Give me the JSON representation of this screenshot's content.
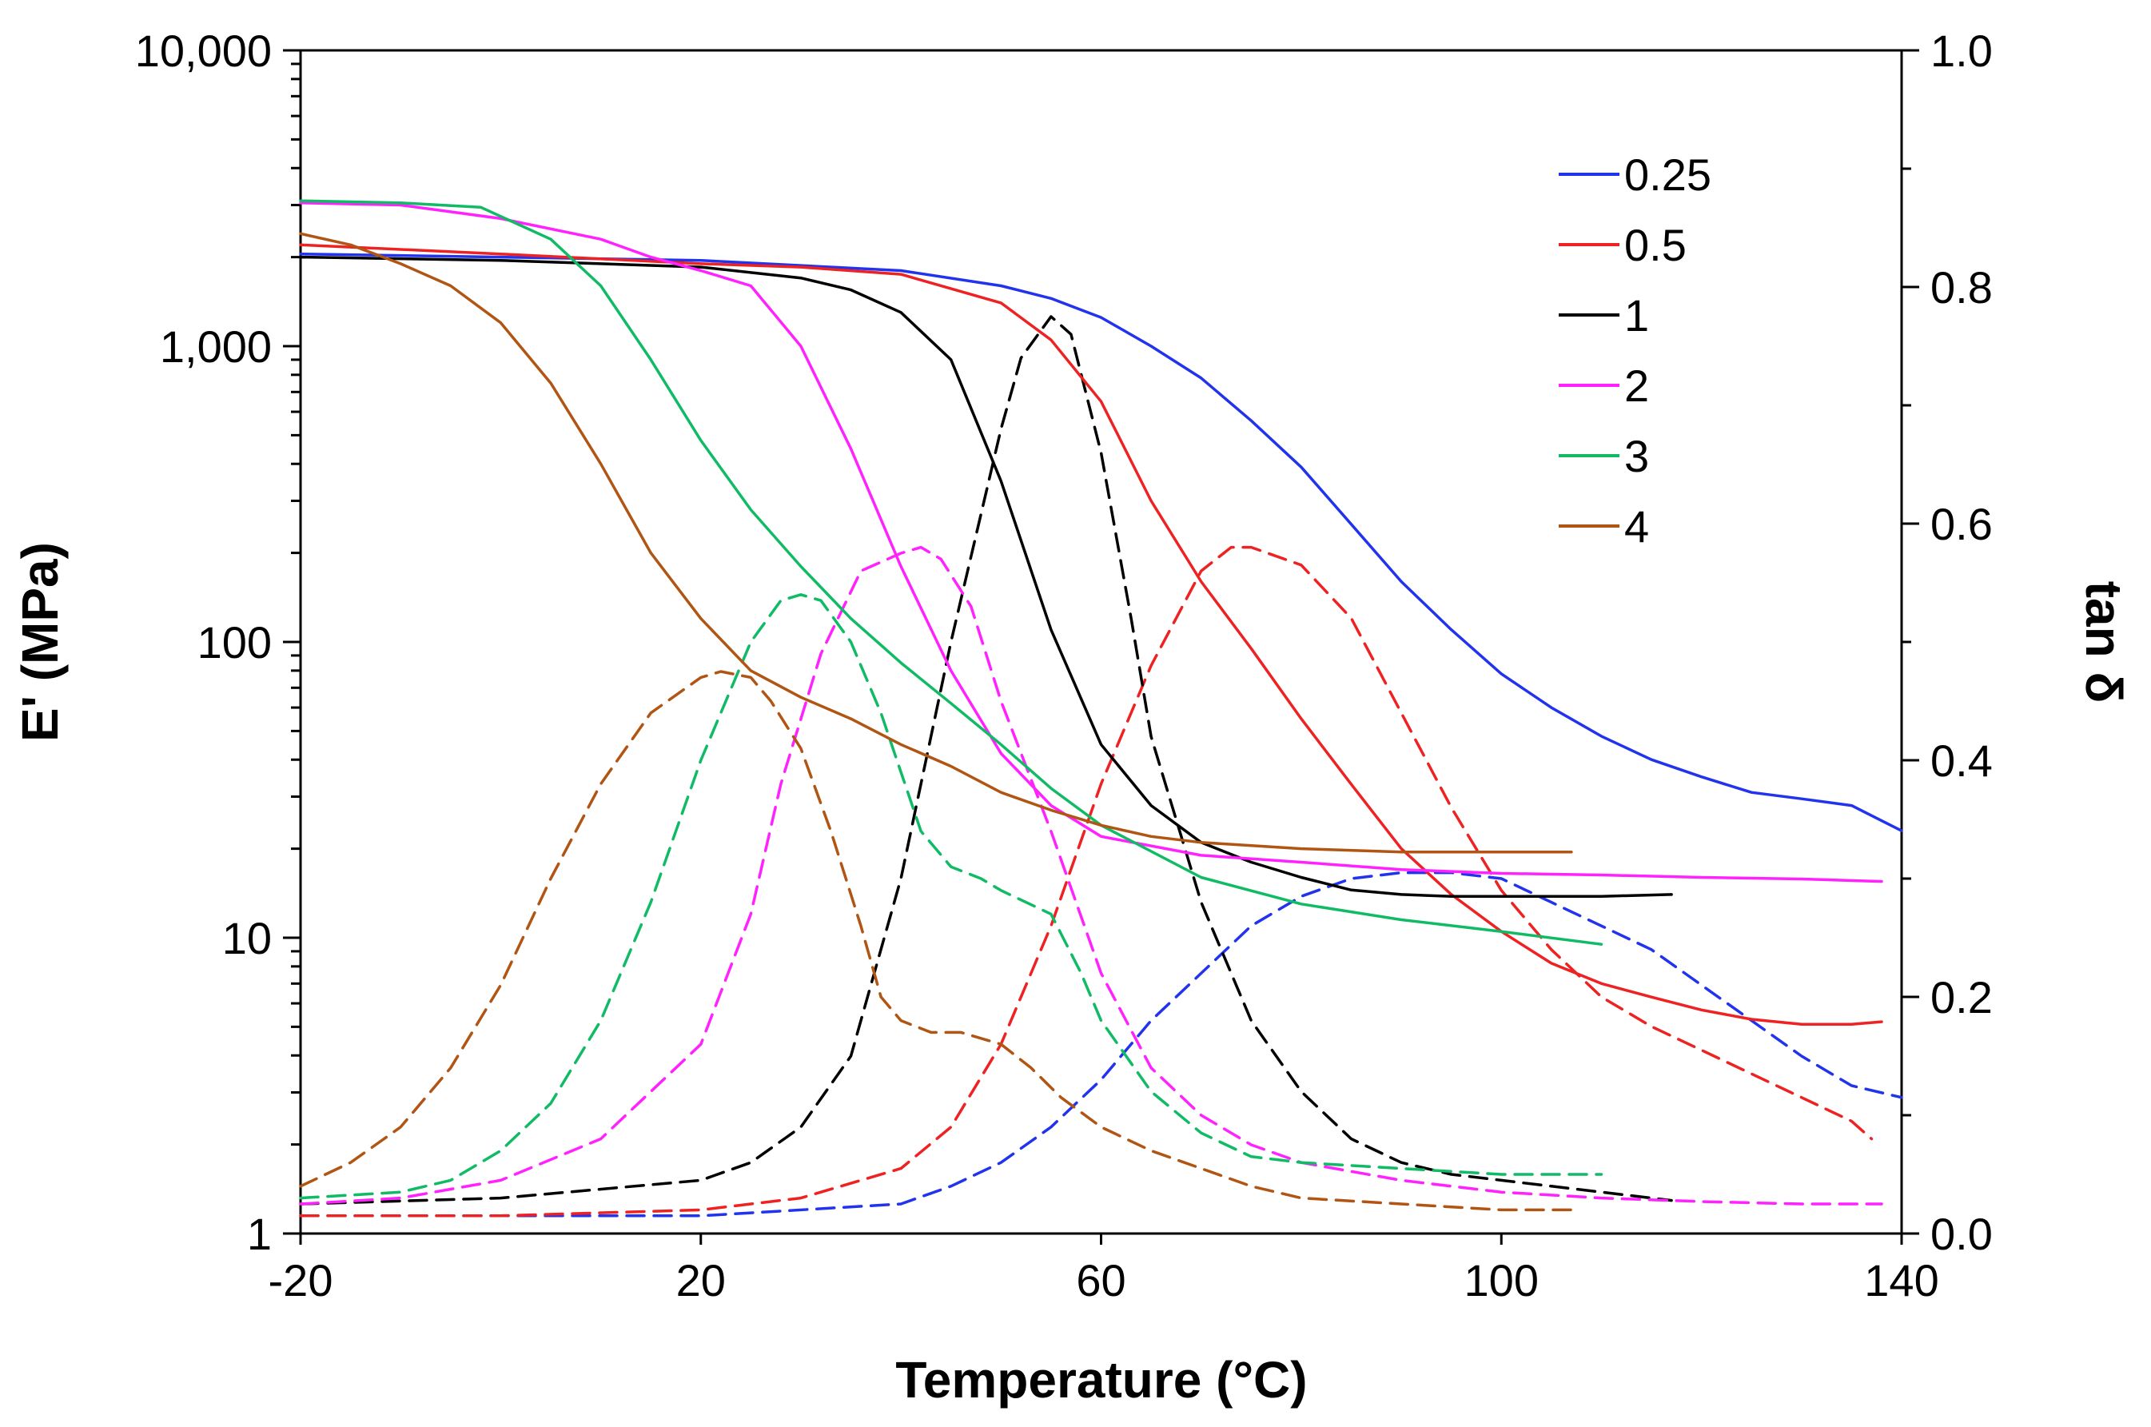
{
  "chart_data": {
    "type": "line",
    "title": "",
    "xlabel": "Temperature (°C)",
    "ylabel_left": "E' (MPa)",
    "ylabel_right": "tan δ",
    "xlim": [
      -20,
      140
    ],
    "ylim_left": [
      1,
      10000
    ],
    "ylim_right": [
      0,
      1.0
    ],
    "yscale_left": "log",
    "legend_position": "top-right",
    "grid": false,
    "x_ticks": [
      -20,
      20,
      60,
      100,
      140
    ],
    "x_tick_labels": [
      "-20",
      "20",
      "60",
      "100",
      "140"
    ],
    "left_ticks": [
      1,
      10,
      100,
      1000,
      10000
    ],
    "left_tick_labels": [
      "1",
      "10",
      "100",
      "1,000",
      "10,000"
    ],
    "right_ticks": [
      0,
      0.2,
      0.4,
      0.6,
      0.8,
      1.0
    ],
    "right_tick_labels": [
      "0.0",
      "0.2",
      "0.4",
      "0.6",
      "0.8",
      "1.0"
    ],
    "series": [
      {
        "name": "0.25",
        "color": "#2233ee",
        "storage_modulus": {
          "x": [
            -20,
            0,
            20,
            40,
            50,
            55,
            60,
            65,
            70,
            75,
            80,
            85,
            90,
            95,
            100,
            105,
            110,
            115,
            120,
            125,
            130,
            135,
            140
          ],
          "y": [
            2050,
            2000,
            1950,
            1800,
            1600,
            1450,
            1250,
            1000,
            780,
            560,
            390,
            250,
            160,
            110,
            78,
            60,
            48,
            40,
            35,
            31,
            29.5,
            28,
            23
          ]
        },
        "tan_delta": {
          "x": [
            -20,
            20,
            40,
            45,
            50,
            55,
            60,
            65,
            70,
            75,
            80,
            85,
            90,
            95,
            100,
            105,
            110,
            115,
            120,
            125,
            130,
            135,
            140
          ],
          "y": [
            0.015,
            0.015,
            0.025,
            0.04,
            0.06,
            0.09,
            0.13,
            0.18,
            0.22,
            0.26,
            0.285,
            0.3,
            0.305,
            0.305,
            0.3,
            0.28,
            0.26,
            0.24,
            0.21,
            0.18,
            0.15,
            0.125,
            0.115
          ]
        }
      },
      {
        "name": "0.5",
        "color": "#ee2222",
        "storage_modulus": {
          "x": [
            -20,
            0,
            20,
            30,
            40,
            50,
            55,
            60,
            65,
            70,
            75,
            80,
            85,
            90,
            95,
            100,
            105,
            110,
            115,
            120,
            125,
            130,
            135,
            138
          ],
          "y": [
            2200,
            2050,
            1900,
            1850,
            1750,
            1400,
            1050,
            650,
            300,
            160,
            95,
            55,
            33,
            20,
            14,
            10.5,
            8.2,
            7,
            6.3,
            5.7,
            5.3,
            5.1,
            5.1,
            5.2
          ]
        },
        "tan_delta": {
          "x": [
            -20,
            0,
            20,
            30,
            40,
            45,
            50,
            55,
            60,
            65,
            70,
            73,
            75,
            80,
            85,
            90,
            95,
            100,
            105,
            110,
            115,
            120,
            125,
            130,
            135,
            137
          ],
          "y": [
            0.015,
            0.015,
            0.02,
            0.03,
            0.055,
            0.09,
            0.16,
            0.26,
            0.38,
            0.48,
            0.56,
            0.58,
            0.58,
            0.565,
            0.52,
            0.44,
            0.36,
            0.29,
            0.24,
            0.2,
            0.175,
            0.155,
            0.135,
            0.115,
            0.095,
            0.08
          ]
        }
      },
      {
        "name": "1",
        "color": "#000000",
        "storage_modulus": {
          "x": [
            -20,
            0,
            20,
            30,
            35,
            40,
            45,
            50,
            55,
            60,
            65,
            70,
            75,
            80,
            85,
            90,
            95,
            100,
            110,
            117
          ],
          "y": [
            2000,
            1950,
            1850,
            1700,
            1550,
            1300,
            900,
            350,
            110,
            45,
            28,
            21,
            18,
            16,
            14.5,
            14,
            13.8,
            13.8,
            13.8,
            14
          ]
        },
        "tan_delta": {
          "x": [
            -20,
            0,
            20,
            25,
            30,
            35,
            40,
            45,
            50,
            52,
            55,
            57,
            60,
            63,
            65,
            70,
            75,
            80,
            85,
            90,
            95,
            100,
            105,
            110,
            115,
            117
          ],
          "y": [
            0.025,
            0.03,
            0.045,
            0.06,
            0.09,
            0.15,
            0.3,
            0.5,
            0.68,
            0.74,
            0.775,
            0.76,
            0.66,
            0.52,
            0.42,
            0.28,
            0.18,
            0.12,
            0.08,
            0.06,
            0.05,
            0.045,
            0.04,
            0.035,
            0.03,
            0.028
          ]
        }
      },
      {
        "name": "2",
        "color": "#ff22ff",
        "storage_modulus": {
          "x": [
            -20,
            -10,
            0,
            10,
            15,
            20,
            25,
            30,
            35,
            40,
            45,
            50,
            55,
            60,
            70,
            80,
            90,
            100,
            110,
            120,
            130,
            138
          ],
          "y": [
            3050,
            3000,
            2700,
            2300,
            2000,
            1800,
            1600,
            1000,
            450,
            180,
            80,
            42,
            28,
            22,
            19,
            18,
            17,
            16.5,
            16.3,
            16,
            15.8,
            15.5
          ]
        },
        "tan_delta": {
          "x": [
            -20,
            -10,
            0,
            10,
            20,
            25,
            28,
            32,
            36,
            40,
            42,
            44,
            47,
            50,
            55,
            60,
            65,
            70,
            75,
            80,
            90,
            100,
            110,
            120,
            130,
            138
          ],
          "y": [
            0.025,
            0.03,
            0.045,
            0.08,
            0.16,
            0.27,
            0.38,
            0.49,
            0.56,
            0.575,
            0.58,
            0.57,
            0.53,
            0.45,
            0.34,
            0.22,
            0.14,
            0.1,
            0.075,
            0.06,
            0.045,
            0.035,
            0.03,
            0.027,
            0.025,
            0.025
          ]
        }
      },
      {
        "name": "3",
        "color": "#11bb66",
        "storage_modulus": {
          "x": [
            -20,
            -10,
            -2,
            5,
            10,
            15,
            20,
            25,
            30,
            35,
            40,
            45,
            50,
            55,
            60,
            70,
            80,
            90,
            100,
            110
          ],
          "y": [
            3100,
            3050,
            2950,
            2300,
            1600,
            900,
            480,
            280,
            180,
            120,
            85,
            62,
            45,
            32,
            24,
            16,
            13,
            11.5,
            10.5,
            9.5
          ]
        },
        "tan_delta": {
          "x": [
            -20,
            -10,
            -5,
            0,
            5,
            10,
            15,
            20,
            25,
            28,
            30,
            32,
            35,
            38,
            40,
            42,
            45,
            48,
            50,
            55,
            58,
            60,
            65,
            70,
            75,
            80,
            90,
            100,
            103,
            105,
            110
          ],
          "y": [
            0.03,
            0.035,
            0.045,
            0.07,
            0.11,
            0.18,
            0.28,
            0.4,
            0.5,
            0.535,
            0.54,
            0.535,
            0.5,
            0.44,
            0.39,
            0.34,
            0.31,
            0.3,
            0.29,
            0.27,
            0.22,
            0.18,
            0.12,
            0.085,
            0.065,
            0.06,
            0.055,
            0.05,
            0.05,
            0.05,
            0.05
          ]
        }
      },
      {
        "name": "4",
        "color": "#b05514",
        "storage_modulus": {
          "x": [
            -20,
            -15,
            -10,
            -5,
            0,
            5,
            10,
            15,
            20,
            25,
            30,
            35,
            40,
            45,
            50,
            55,
            60,
            65,
            70,
            80,
            90,
            100,
            107
          ],
          "y": [
            2400,
            2200,
            1900,
            1600,
            1200,
            750,
            400,
            200,
            120,
            80,
            65,
            55,
            45,
            38,
            31,
            27,
            24,
            22,
            21,
            20,
            19.5,
            19.5,
            19.5
          ]
        },
        "tan_delta": {
          "x": [
            -20,
            -15,
            -10,
            -5,
            0,
            5,
            10,
            15,
            20,
            22,
            25,
            27,
            30,
            33,
            36,
            38,
            40,
            43,
            46,
            50,
            53,
            56,
            60,
            65,
            70,
            75,
            80,
            90,
            100,
            107
          ],
          "y": [
            0.04,
            0.06,
            0.09,
            0.14,
            0.21,
            0.3,
            0.38,
            0.44,
            0.47,
            0.475,
            0.47,
            0.45,
            0.41,
            0.34,
            0.26,
            0.2,
            0.18,
            0.17,
            0.17,
            0.16,
            0.14,
            0.115,
            0.09,
            0.07,
            0.055,
            0.04,
            0.03,
            0.025,
            0.02,
            0.02
          ]
        }
      }
    ]
  }
}
